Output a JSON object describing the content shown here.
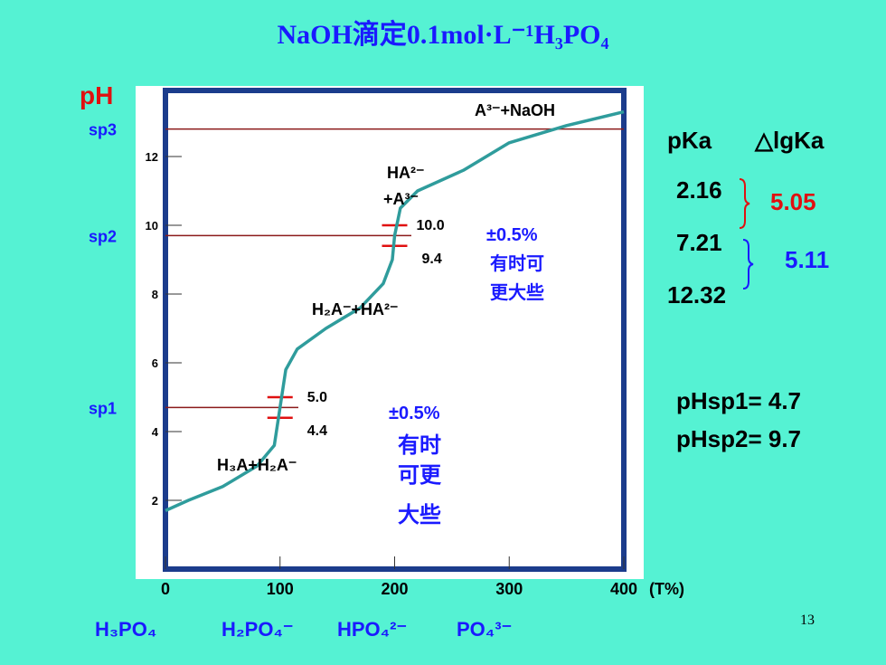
{
  "chart_data": {
    "type": "line",
    "title": "NaOH滴定0.1mol·L⁻¹H₃PO₄",
    "y_label": "pH",
    "x_unit": "(T%)",
    "x": [
      0,
      20,
      50,
      80,
      95,
      100,
      105,
      115,
      140,
      170,
      190,
      198,
      200,
      205,
      220,
      260,
      300,
      350,
      400
    ],
    "series": [
      {
        "name": "pH",
        "color": "#2f9c9c",
        "values": [
          1.7,
          2.0,
          2.4,
          3.0,
          3.6,
          4.7,
          5.8,
          6.4,
          7.0,
          7.6,
          8.3,
          9.0,
          9.7,
          10.5,
          11.0,
          11.6,
          12.4,
          12.9,
          13.3
        ]
      }
    ],
    "xlim": [
      0,
      400
    ],
    "ylim": [
      0,
      14
    ],
    "xticks": [
      0,
      100,
      200,
      300,
      400
    ],
    "yticks": [
      2,
      4,
      6,
      8,
      10,
      12
    ],
    "sp_lines": [
      {
        "label": "sp1",
        "value": 4.7
      },
      {
        "label": "sp2",
        "value": 9.7
      },
      {
        "label": "sp3",
        "value": 12.8
      }
    ],
    "tolerance_marks": [
      {
        "x": 100,
        "ticks": [
          {
            "value": 5.0,
            "label": "5.0"
          },
          {
            "value": 4.4,
            "label": "4.4"
          }
        ]
      },
      {
        "x": 200,
        "ticks": [
          {
            "value": 10.0,
            "label": "10.0"
          },
          {
            "value": 9.4,
            "label": "9.4"
          }
        ]
      }
    ],
    "annotations": [
      "A³⁻+NaOH",
      "HA²⁻",
      "+A³⁻",
      "H₂A⁻+HA²⁻",
      "H₃A+H₂A⁻",
      "±0.5%",
      "有时可",
      "更大些",
      "±0.5%",
      "有时",
      "可更",
      "大些"
    ],
    "species": [
      "H₃PO₄",
      "H₂PO₄⁻",
      "HPO₄²⁻",
      "PO₄³⁻"
    ]
  },
  "side": {
    "pka_header": "pKa",
    "dlgka_header": "△lgKa",
    "pka": [
      "2.16",
      "7.21",
      "12.32"
    ],
    "dlgka": [
      "5.05",
      "5.11"
    ],
    "phsp": [
      "pHsp1= 4.7",
      "pHsp2= 9.7"
    ]
  },
  "page_number": "13"
}
